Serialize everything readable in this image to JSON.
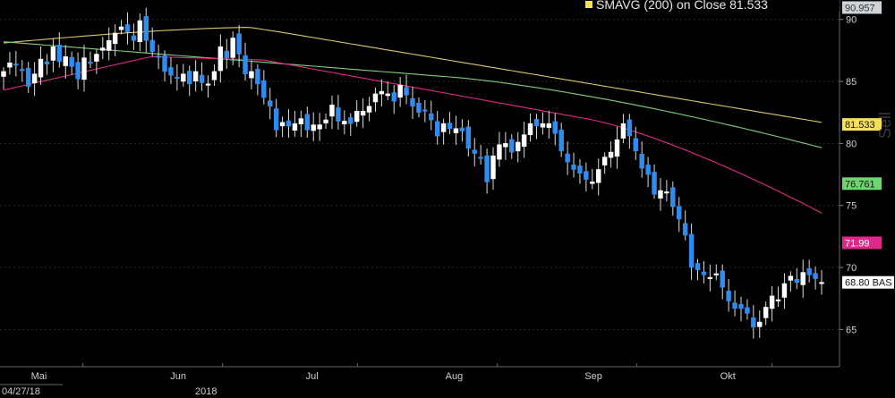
{
  "legend": {
    "label": "SMAVG (200) on Close 81.533",
    "swatch_color": "#f5e05a"
  },
  "chart_data": {
    "type": "candlestick",
    "y_range": [
      62,
      90.7
    ],
    "y_ticks": [
      "65",
      "70",
      "75",
      "80",
      "85",
      "90"
    ],
    "x_tick_labels": [
      {
        "label": "Mai",
        "date": "2018-05-01"
      },
      {
        "label": "Jun",
        "date": "2018-06-01"
      },
      {
        "label": "Jul",
        "date": "2018-07-01"
      },
      {
        "label": "Aug",
        "date": "2018-08-01"
      },
      {
        "label": "Sep",
        "date": "2018-09-01"
      },
      {
        "label": "Okt",
        "date": "2018-10-01"
      }
    ],
    "start_date_label": "04/27/18",
    "year_label": "2018",
    "colors": {
      "up": "#ffffff",
      "down": "#2f8cf0",
      "ma200": "#d9c56a",
      "ma100": "#7fcf7f",
      "ma50": "#e0288a"
    },
    "value_boxes": [
      {
        "value": "90.957",
        "bg": "#cfd3d6",
        "fg": "#333333"
      },
      {
        "value": "81.533",
        "bg": "#f5e05a",
        "fg": "#111111"
      },
      {
        "value": "76.761",
        "bg": "#6fd66f",
        "fg": "#111111"
      },
      {
        "value": "71.99",
        "bg": "#e0288a",
        "fg": "#ffffff"
      },
      {
        "value": "68.80 BAS",
        "bg": "#ffffff",
        "fg": "#111111"
      }
    ],
    "ohlc_close_series": [
      85.8,
      86.5,
      86.3,
      85.9,
      84.6,
      85.6,
      86.8,
      86.4,
      87.8,
      86.6,
      87.0,
      86.2,
      85.2,
      86.9,
      86.5,
      87.2,
      87.7,
      88.3,
      88.9,
      89.4,
      89.0,
      88.3,
      89.9,
      88.3,
      87.4,
      87.0,
      85.8,
      85.5,
      85.3,
      85.6,
      84.8,
      85.8,
      84.9,
      84.8,
      85.8,
      87.8,
      86.9,
      88.5,
      87.2,
      85.6,
      85.8,
      84.8,
      83.7,
      83.0,
      81.1,
      81.7,
      81.4,
      81.6,
      82.0,
      81.1,
      81.5,
      81.5,
      81.9,
      83.1,
      81.8,
      81.8,
      81.6,
      82.6,
      82.6,
      83.0,
      84.0,
      84.2,
      84.0,
      83.4,
      84.7,
      83.9,
      83.0,
      82.5,
      82.7,
      81.9,
      80.6,
      81.6,
      81.2,
      81.2,
      81.0,
      79.6,
      79.2,
      78.8,
      76.9,
      79.0,
      79.9,
      80.0,
      79.3,
      80.1,
      80.7,
      81.6,
      81.4,
      81.6,
      81.6,
      80.8,
      79.4,
      78.5,
      77.9,
      77.6,
      77.1,
      76.9,
      77.9,
      78.9,
      79.3,
      80.3,
      81.6,
      80.6,
      79.4,
      78.0,
      77.5,
      75.9,
      76.2,
      76.1,
      74.9,
      73.9,
      72.6,
      70.0,
      69.8,
      69.4,
      69.2,
      69.5,
      68.4,
      67.3,
      66.7,
      66.7,
      66.3,
      65.2,
      65.6,
      66.8,
      67.7,
      67.4,
      68.7,
      69.3,
      68.8,
      69.6,
      69.4,
      69.1,
      68.8
    ]
  }
}
